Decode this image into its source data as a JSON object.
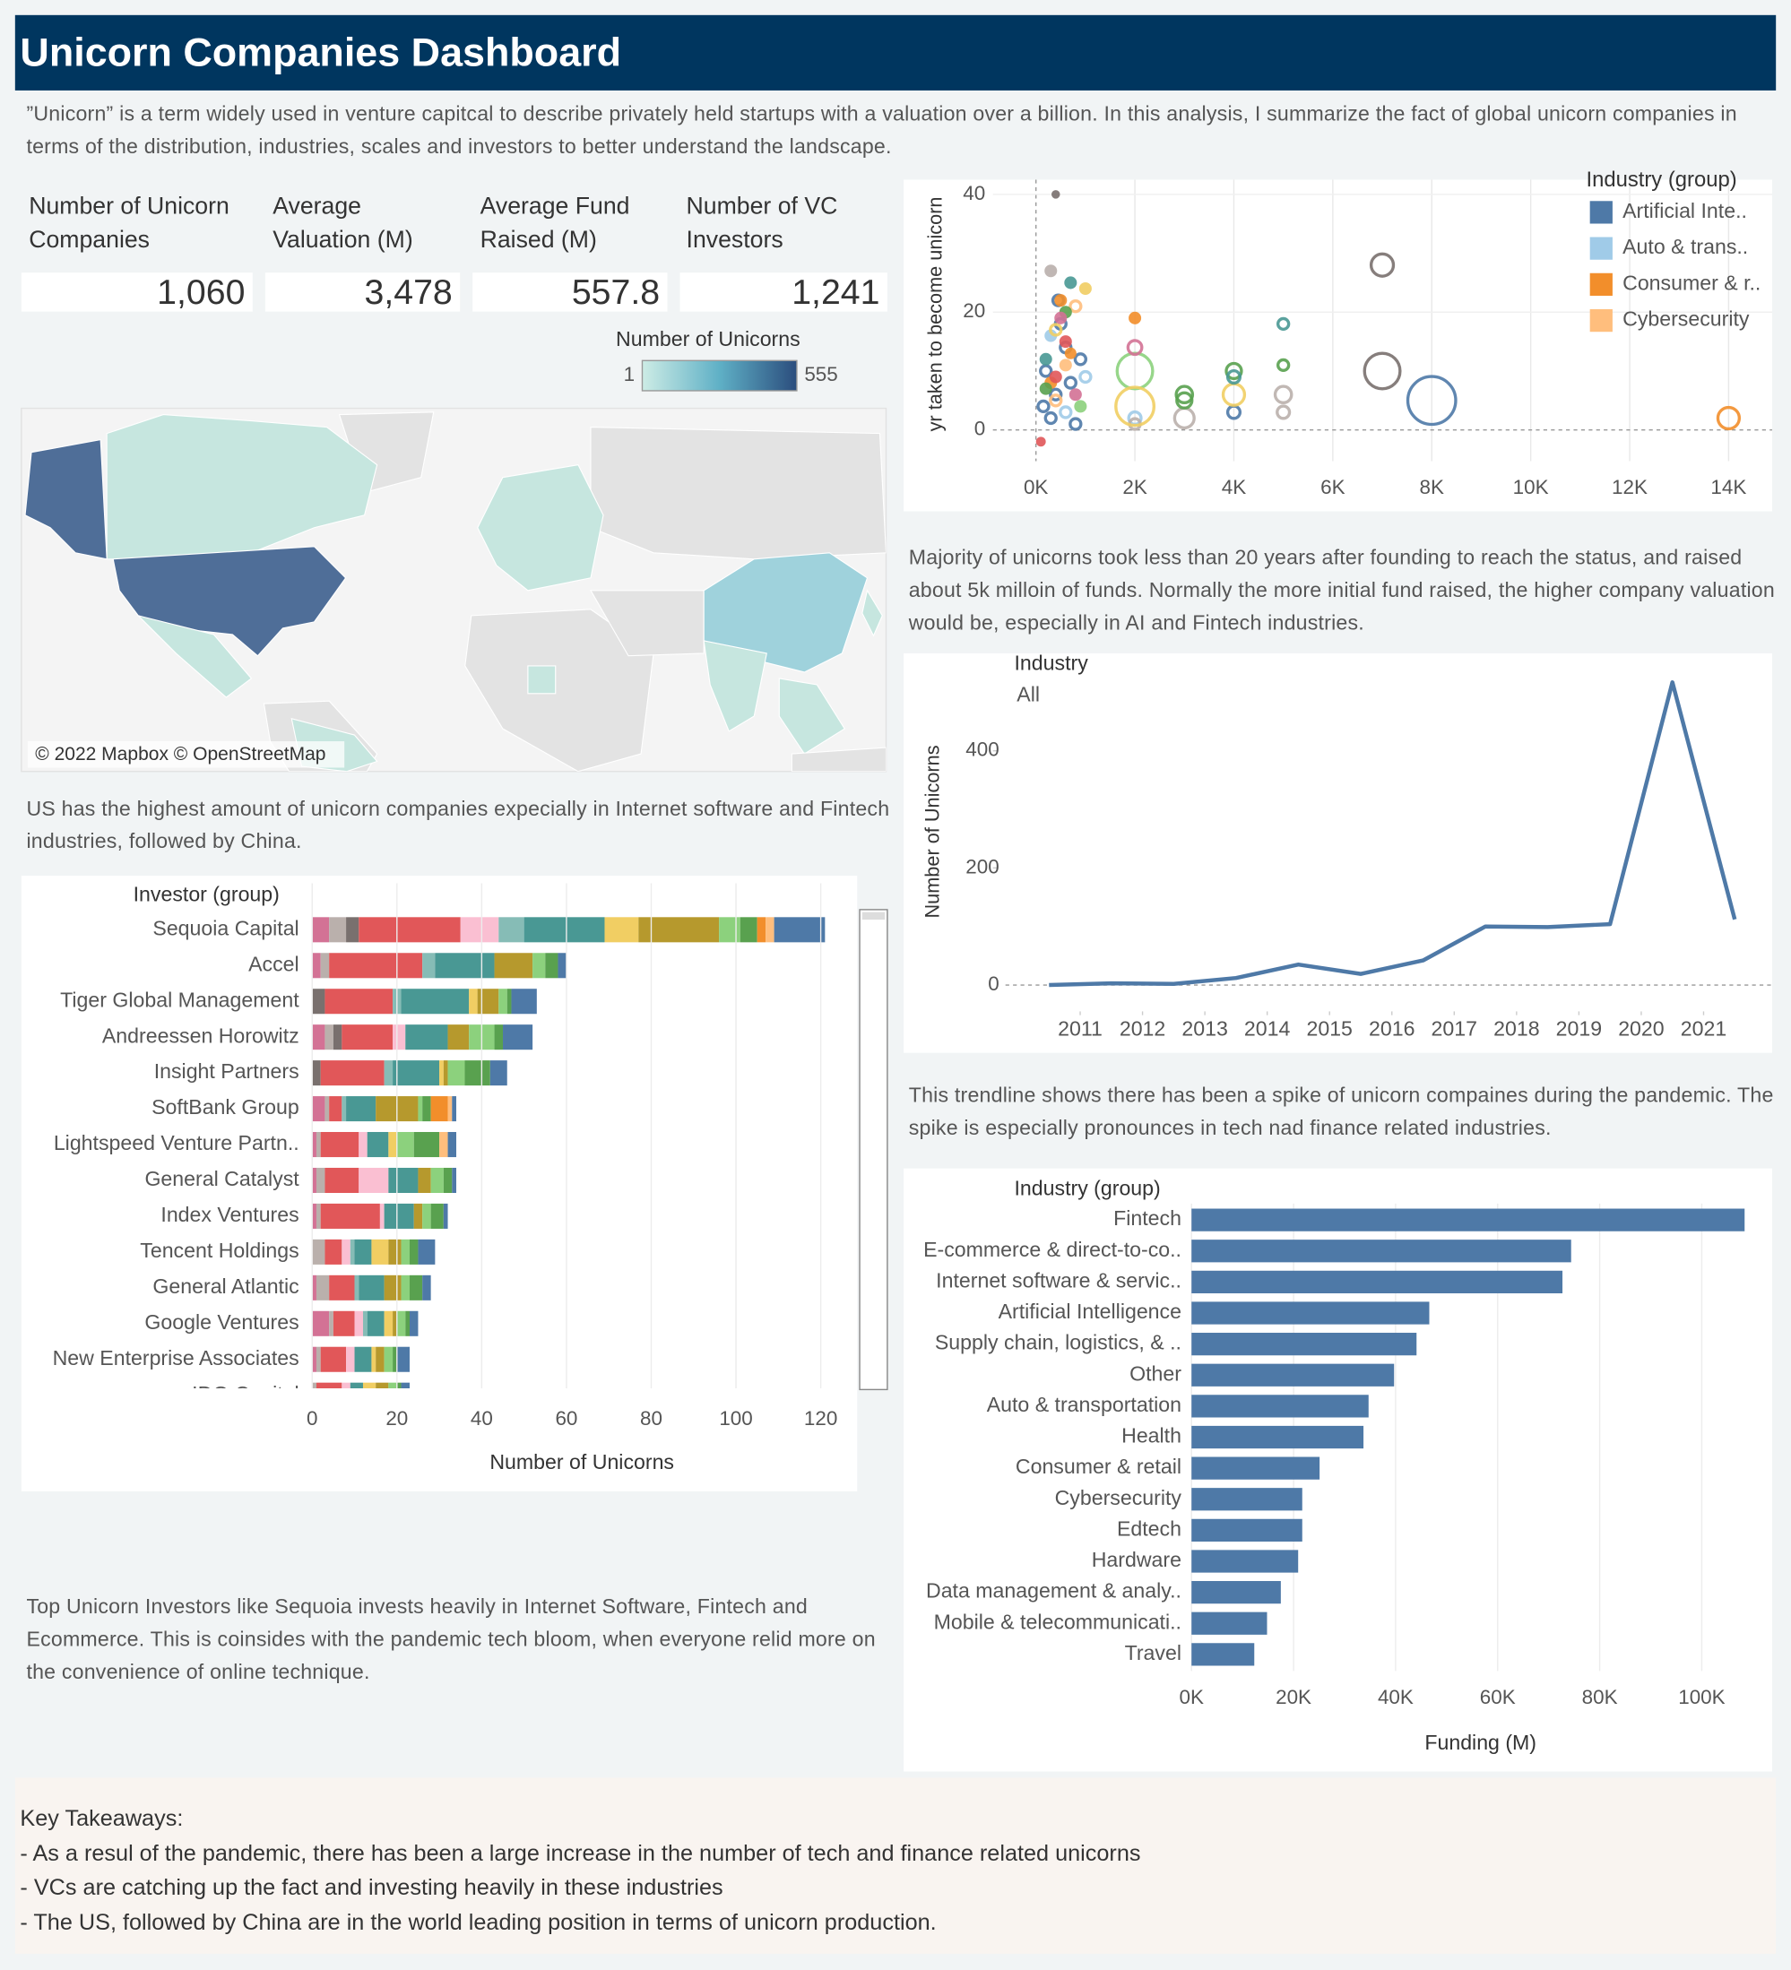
{
  "header": {
    "title": "Unicorn Companies Dashboard"
  },
  "intro": "”Unicorn” is a term widely used in venture capitcal to describe privately held startups with a valuation over a billion. In this analysis, I summarize the fact of global unicorn companies in terms of the distribution, industries, scales and investors to better understand the landscape.",
  "kpis": [
    {
      "label": "Number of Unicorn Companies",
      "value": "1,060"
    },
    {
      "label": "Average Valuation (M)",
      "value": "3,478"
    },
    {
      "label": "Average Fund Raised (M)",
      "value": "557.8"
    },
    {
      "label": "Number of VC Investors",
      "value": "1,241"
    }
  ],
  "map": {
    "legend_title": "Number of Unicorns",
    "legend_min": "1",
    "legend_max": "555",
    "attribution": "© 2022 Mapbox © OpenStreetMap"
  },
  "notes": {
    "map": "US has the highest amount of unicorn companies expecially in Internet software and Fintech industries, followed by China.",
    "investors": "Top Unicorn Investors like Sequoia invests heavily in Internet Software, Fintech and Ecommerce. This is coinsides with the pandemic tech bloom, when everyone relid more on the convenience of online technique.",
    "scatter": "Majority of unicorns took less than 20 years after founding to reach the status, and raised about 5k milloin of funds. Normally the more initial fund raised, the higher company valuation would be, especially in AI and Fintech industries.",
    "trend": "This trendline shows there has been a spike of unicorn compaines during the pandemic. The spike is especially pronounces in tech nad finance related industries."
  },
  "takeaways": {
    "title": "Key Takeaways:",
    "lines": [
      "- As a resul of the pandemic, there has been a large increase in the number of tech and finance related unicorns",
      "- VCs are catching up the fact and investing heavily in these industries",
      "- The US, followed by China are in the world leading position in terms of unicorn production."
    ]
  },
  "chart_data": [
    {
      "type": "scatter",
      "y_label": "yr taken to become unicorn",
      "legend_title": "Industry (group)",
      "xlim": [
        -870,
        14880
      ],
      "ylim": [
        -5.3,
        42.5
      ],
      "xticks": [
        {
          "value": 0,
          "label": "0K"
        },
        {
          "value": 2000,
          "label": "2K"
        },
        {
          "value": 4000,
          "label": "4K"
        },
        {
          "value": 6000,
          "label": "6K"
        },
        {
          "value": 8000,
          "label": "8K"
        },
        {
          "value": 10000,
          "label": "10K"
        },
        {
          "value": 12000,
          "label": "12K"
        },
        {
          "value": 14000,
          "label": "14K"
        }
      ],
      "yticks": [
        0,
        20,
        40
      ],
      "series": [
        {
          "name": "Artificial Inte..",
          "color": "#4e79a7",
          "x": [
            8000,
            4000,
            200,
            400,
            600,
            300,
            500,
            700,
            150,
            900,
            800,
            450
          ],
          "y": [
            5,
            3,
            10,
            6,
            14,
            2,
            18,
            8,
            4,
            12,
            1,
            22
          ],
          "sizes": [
            300,
            20,
            15,
            15,
            15,
            15,
            15,
            15,
            15,
            15,
            15,
            15
          ]
        },
        {
          "name": "Auto & trans..",
          "color": "#a0cbe8",
          "x": [
            1000,
            300,
            600,
            2000
          ],
          "y": [
            9,
            16,
            3,
            2
          ],
          "sizes": [
            15,
            12,
            15,
            20
          ]
        },
        {
          "name": "Consumer & r..",
          "color": "#f28e2b",
          "x": [
            14000,
            2000,
            500,
            300,
            700
          ],
          "y": [
            2,
            19,
            22,
            8,
            13
          ],
          "sizes": [
            60,
            12,
            12,
            12,
            10
          ]
        },
        {
          "name": "Cybersecurity",
          "color": "#ffbe7d",
          "x": [
            400,
            800,
            600
          ],
          "y": [
            5,
            21,
            11
          ],
          "sizes": [
            15,
            15,
            12
          ]
        },
        {
          "color": "#79706e",
          "x": [
            7000,
            7000,
            400
          ],
          "y": [
            28,
            10,
            40
          ],
          "sizes": [
            65,
            165,
            4
          ]
        },
        {
          "color": "#bab0ac",
          "x": [
            3000,
            5000,
            5000,
            2000,
            300
          ],
          "y": [
            2,
            6,
            3,
            1,
            27
          ],
          "sizes": [
            50,
            35,
            20,
            15,
            12
          ]
        },
        {
          "color": "#59a14f",
          "x": [
            3000,
            4000,
            5000,
            3000,
            600,
            200
          ],
          "y": [
            6,
            10,
            11,
            5,
            20,
            7
          ],
          "sizes": [
            35,
            30,
            15,
            30,
            12,
            12
          ]
        },
        {
          "color": "#8cd17d",
          "x": [
            2000,
            900
          ],
          "y": [
            10,
            4
          ],
          "sizes": [
            165,
            12
          ]
        },
        {
          "color": "#f1ce63",
          "x": [
            2000,
            4000,
            400,
            1000
          ],
          "y": [
            4,
            6,
            17,
            24
          ],
          "sizes": [
            190,
            60,
            15,
            12
          ]
        },
        {
          "color": "#499894",
          "x": [
            5000,
            4000,
            700,
            200
          ],
          "y": [
            18,
            9,
            25,
            12
          ],
          "sizes": [
            15,
            20,
            12,
            12
          ]
        },
        {
          "color": "#d37295",
          "x": [
            2000,
            500,
            800
          ],
          "y": [
            14,
            19,
            6
          ],
          "sizes": [
            25,
            12,
            12
          ]
        },
        {
          "color": "#e15759",
          "x": [
            400,
            600,
            100
          ],
          "y": [
            9,
            15,
            -2
          ],
          "sizes": [
            12,
            12,
            6
          ]
        }
      ]
    },
    {
      "type": "stacked-bar",
      "header": "Investor (group)",
      "x_label": "Number of Unicorns",
      "categories": [
        "Sequoia Capital",
        "Accel",
        "Tiger Global Management",
        "Andreessen Horowitz",
        "Insight Partners",
        "SoftBank Group",
        "Lightspeed Venture Partn..",
        "General Catalyst",
        "Index Ventures",
        "Tencent Holdings",
        "General Atlantic",
        "Google Ventures",
        "New Enterprise Associates",
        "IDG Capital"
      ],
      "xlim": [
        -1,
        128
      ],
      "xticks": [
        0,
        20,
        40,
        60,
        80,
        100,
        120
      ],
      "series": [
        {
          "color": "#d37295",
          "values": [
            4,
            2,
            0,
            3,
            0,
            3,
            1,
            1,
            1,
            0,
            1,
            4,
            1,
            0
          ]
        },
        {
          "color": "#bab0ac",
          "values": [
            4,
            2,
            0,
            2,
            0,
            1,
            1,
            2,
            1,
            3,
            3,
            1,
            1,
            1
          ]
        },
        {
          "color": "#79706e",
          "values": [
            3,
            0,
            3,
            2,
            2,
            0,
            0,
            0,
            0,
            0,
            0,
            0,
            0,
            0
          ]
        },
        {
          "color": "#e15759",
          "values": [
            24,
            22,
            16,
            12,
            15,
            3,
            9,
            8,
            14,
            4,
            6,
            5,
            6,
            6
          ]
        },
        {
          "color": "#fabfd2",
          "values": [
            9,
            0,
            0,
            3,
            0,
            0,
            2,
            7,
            1,
            2,
            0,
            2,
            2,
            2
          ]
        },
        {
          "color": "#86bcb6",
          "values": [
            6,
            3,
            2,
            0,
            2,
            1,
            0,
            0,
            0,
            1,
            1,
            1,
            0,
            0
          ]
        },
        {
          "color": "#499894",
          "values": [
            19,
            14,
            16,
            10,
            11,
            7,
            5,
            7,
            7,
            4,
            6,
            4,
            4,
            3
          ]
        },
        {
          "color": "#f1ce63",
          "values": [
            8,
            0,
            2,
            0,
            1,
            0,
            2,
            0,
            0,
            4,
            0,
            2,
            1,
            3
          ]
        },
        {
          "color": "#b6992d",
          "values": [
            19,
            9,
            5,
            5,
            1,
            10,
            0,
            3,
            2,
            3,
            4,
            1,
            2,
            3
          ]
        },
        {
          "color": "#8cd17d",
          "values": [
            5,
            3,
            2,
            6,
            4,
            1,
            4,
            3,
            2,
            2,
            2,
            2,
            2,
            2
          ]
        },
        {
          "color": "#59a14f",
          "values": [
            4,
            3,
            1,
            2,
            6,
            2,
            6,
            2,
            3,
            2,
            3,
            1,
            1,
            1
          ]
        },
        {
          "color": "#f28e2b",
          "values": [
            2,
            0,
            0,
            0,
            0,
            4,
            0,
            0,
            0,
            0,
            0,
            0,
            0,
            0
          ]
        },
        {
          "color": "#ffbe7d",
          "values": [
            2,
            0,
            0,
            0,
            0,
            1,
            2,
            0,
            0,
            0,
            0,
            0,
            0,
            0
          ]
        },
        {
          "color": "#4e79a7",
          "values": [
            12,
            2,
            6,
            7,
            4,
            1,
            2,
            1,
            1,
            4,
            2,
            2,
            3,
            2
          ]
        }
      ]
    },
    {
      "type": "line",
      "filter_title": "Industry",
      "filter_value": "All",
      "y_label": "Number of Unicorns",
      "color": "#4e79a7",
      "x": [
        2010.5,
        2011.5,
        2012.5,
        2013.5,
        2014.5,
        2015.5,
        2016.5,
        2017.5,
        2018.5,
        2019.5,
        2020.5,
        2021.5
      ],
      "y": [
        0,
        3,
        2,
        12,
        35,
        19,
        42,
        100,
        99,
        104,
        517,
        112
      ],
      "xlim": [
        2009.6,
        2022.1
      ],
      "ylim": [
        -45,
        545
      ],
      "xticks": [
        2011,
        2012,
        2013,
        2014,
        2015,
        2016,
        2017,
        2018,
        2019,
        2020,
        2021
      ],
      "yticks": [
        0,
        200,
        400
      ]
    },
    {
      "type": "hbar",
      "header": "Industry (group)",
      "x_label": "Funding (M)",
      "color": "#4e79a7",
      "categories": [
        "Fintech",
        "E-commerce & direct-to-co..",
        "Internet software & servic..",
        "Artificial Intelligence",
        "Supply chain, logistics, & ..",
        "Other",
        "Auto & transportation",
        "Health",
        "Consumer & retail",
        "Cybersecurity",
        "Edtech",
        "Hardware",
        "Data management & analy..",
        "Mobile & telecommunicati..",
        "Travel"
      ],
      "values": [
        108400,
        74400,
        72700,
        46600,
        44100,
        39700,
        34700,
        33700,
        25100,
        21700,
        21700,
        20900,
        17500,
        14800,
        12300
      ],
      "xlim": [
        -500,
        113800
      ],
      "xticks": [
        {
          "value": 0,
          "label": "0K"
        },
        {
          "value": 20000,
          "label": "20K"
        },
        {
          "value": 40000,
          "label": "40K"
        },
        {
          "value": 60000,
          "label": "60K"
        },
        {
          "value": 80000,
          "label": "80K"
        },
        {
          "value": 100000,
          "label": "100K"
        }
      ]
    }
  ]
}
